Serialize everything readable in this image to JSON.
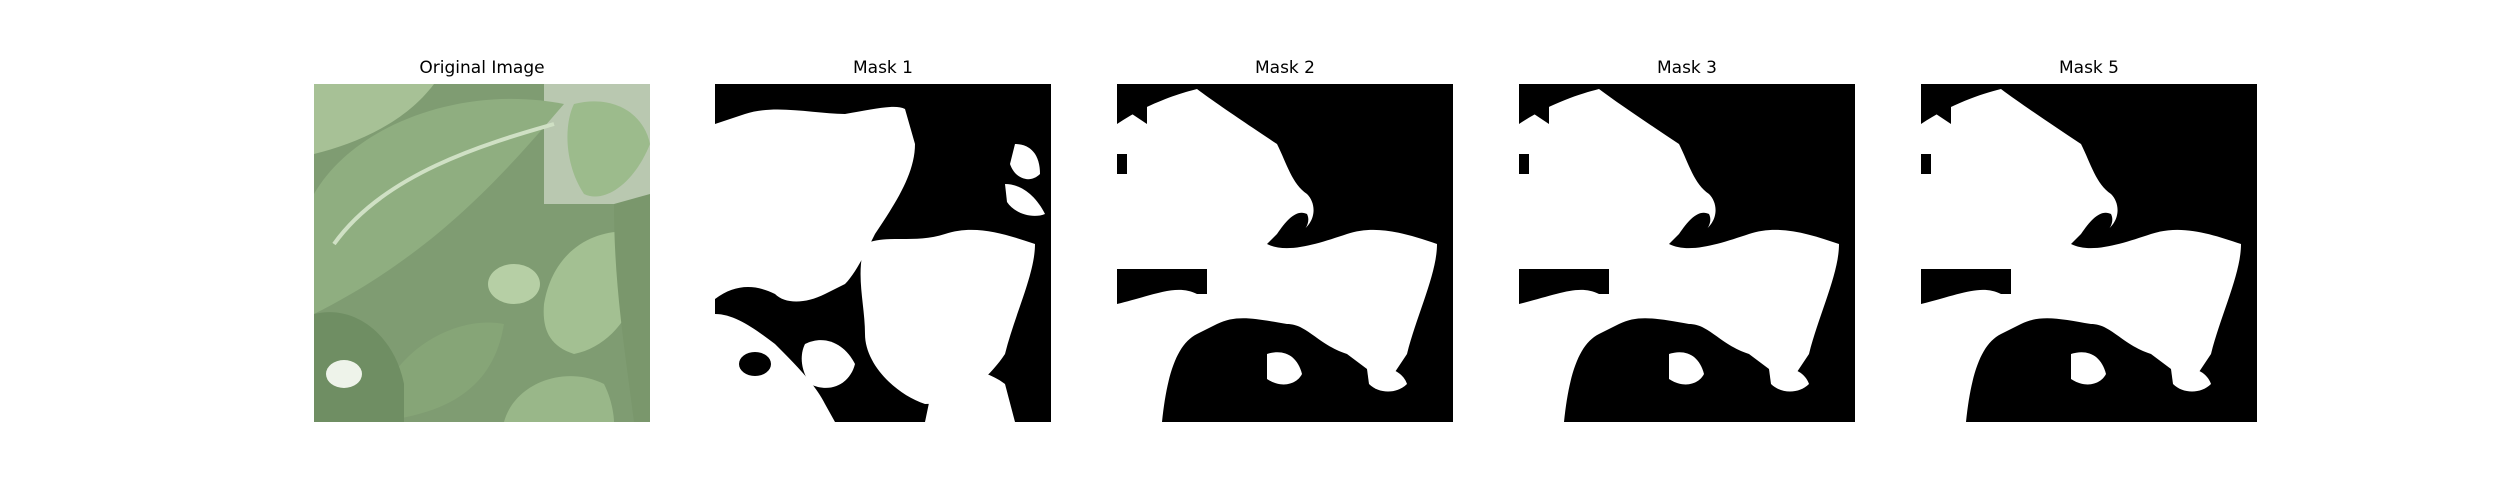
{
  "panels": [
    {
      "title": "Original Image"
    },
    {
      "title": "Mask 1"
    },
    {
      "title": "Mask 2"
    },
    {
      "title": "Mask 3"
    },
    {
      "title": "Mask 5"
    }
  ],
  "colors": {
    "mask_background": "#000000",
    "mask_foreground": "#ffffff",
    "leaf_dark": "#5f7f55",
    "leaf_light": "#a9c39a",
    "leaf_pale": "#c8d8bd"
  }
}
